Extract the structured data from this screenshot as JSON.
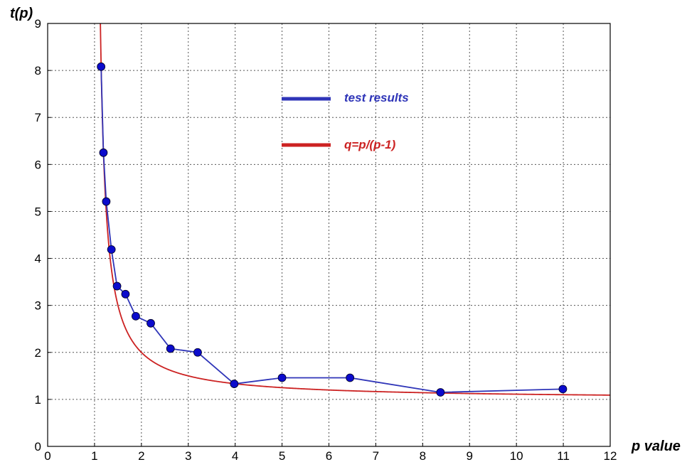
{
  "chart_data": {
    "type": "line",
    "xlabel": "p value",
    "ylabel": "t(p)",
    "xlim": [
      0,
      12
    ],
    "ylim": [
      0,
      9
    ],
    "x_ticks": [
      "0",
      "1",
      "2",
      "3",
      "4",
      "5",
      "6",
      "7",
      "8",
      "9",
      "10",
      "11",
      "12"
    ],
    "y_ticks": [
      "0",
      "1",
      "2",
      "3",
      "4",
      "5",
      "6",
      "7",
      "8",
      "9"
    ],
    "grid": true,
    "legend_position": "upper-center",
    "series": [
      {
        "name": "test results",
        "kind": "line-with-markers",
        "color": "#2f35b8",
        "marker_color": "#0b0bcc",
        "points": [
          {
            "x": 1.14,
            "y": 8.08
          },
          {
            "x": 1.19,
            "y": 6.25
          },
          {
            "x": 1.25,
            "y": 5.21
          },
          {
            "x": 1.36,
            "y": 4.19
          },
          {
            "x": 1.48,
            "y": 3.41
          },
          {
            "x": 1.66,
            "y": 3.24
          },
          {
            "x": 1.88,
            "y": 2.77
          },
          {
            "x": 2.2,
            "y": 2.62
          },
          {
            "x": 2.62,
            "y": 2.08
          },
          {
            "x": 3.2,
            "y": 2.0
          },
          {
            "x": 3.98,
            "y": 1.33
          },
          {
            "x": 5.0,
            "y": 1.46
          },
          {
            "x": 6.45,
            "y": 1.46
          },
          {
            "x": 8.38,
            "y": 1.15
          },
          {
            "x": 10.99,
            "y": 1.22
          }
        ]
      },
      {
        "name": "q=p/(p-1)",
        "kind": "function",
        "formula": "p/(p-1)",
        "color": "#cc2222",
        "domain": [
          1.125,
          12
        ]
      }
    ]
  }
}
